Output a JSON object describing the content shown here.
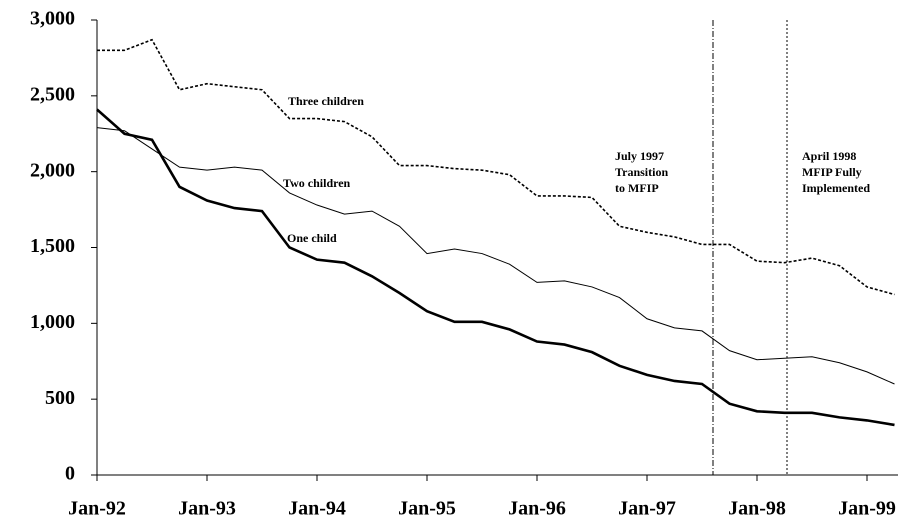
{
  "chart_data": {
    "type": "line",
    "categories": [
      "Jan-92",
      null,
      null,
      null,
      "Jan-93",
      null,
      null,
      null,
      "Jan-94",
      null,
      null,
      null,
      "Jan-95",
      null,
      null,
      null,
      "Jan-96",
      null,
      null,
      null,
      "Jan-97",
      null,
      null,
      null,
      "Jan-98",
      null,
      null,
      null,
      "Jan-99",
      null
    ],
    "series": [
      {
        "name": "Three children",
        "color": "#000000",
        "dash": "3,2",
        "width": 1.6,
        "values": [
          2800,
          2800,
          2870,
          2540,
          2580,
          2560,
          2540,
          2350,
          2350,
          2330,
          2230,
          2040,
          2040,
          2020,
          2010,
          1980,
          1840,
          1840,
          1830,
          1640,
          1600,
          1570,
          1520,
          1520,
          1410,
          1400,
          1430,
          1380,
          1240,
          1190
        ]
      },
      {
        "name": "Two children",
        "color": "#000000",
        "dash": "none",
        "width": 1,
        "values": [
          2290,
          2270,
          2150,
          2030,
          2010,
          2030,
          2010,
          1860,
          1780,
          1720,
          1740,
          1640,
          1460,
          1490,
          1460,
          1390,
          1270,
          1280,
          1240,
          1170,
          1030,
          970,
          950,
          820,
          760,
          770,
          780,
          740,
          680,
          600
        ]
      },
      {
        "name": "One child",
        "color": "#000000",
        "dash": "none",
        "width": 2.6,
        "values": [
          2410,
          2250,
          2210,
          1900,
          1810,
          1760,
          1740,
          1500,
          1420,
          1400,
          1310,
          1200,
          1080,
          1010,
          1010,
          960,
          880,
          860,
          810,
          720,
          660,
          620,
          600,
          470,
          420,
          410,
          410,
          380,
          360,
          330
        ]
      }
    ],
    "annotations": [
      {
        "text": [
          "July 1997",
          "Transition",
          "to MFIP"
        ]
      },
      {
        "text": [
          "April 1998",
          "MFIP Fully",
          "Implemented"
        ]
      }
    ],
    "ylim": [
      0,
      3000
    ],
    "yticks": [
      0,
      500,
      {
        "value": 1000,
        "label": "1,000"
      },
      {
        "value": 1500,
        "label": "1,500"
      },
      {
        "value": 2000,
        "label": "2,000"
      },
      {
        "value": 2500,
        "label": "2,500"
      },
      {
        "value": 3000,
        "label": "3,000"
      }
    ],
    "grid": false
  }
}
